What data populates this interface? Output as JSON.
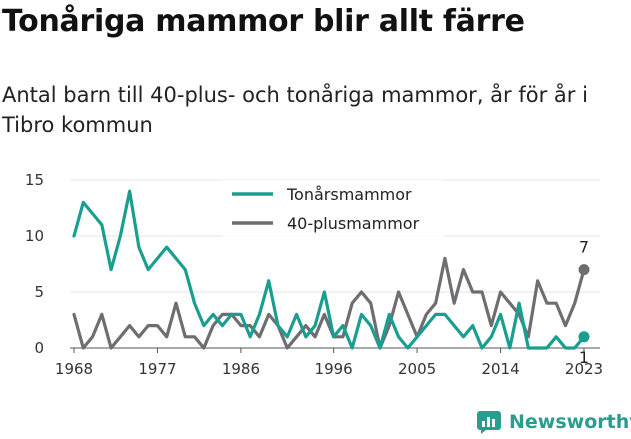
{
  "header": {
    "title": "Tonåriga mammor blir allt färre",
    "subtitle": "Antal barn till 40-plus- och tonåriga mammor, år för år i Tibro kommun"
  },
  "brand": {
    "name": "Newsworthy",
    "icon": "newsworthy-logo-icon",
    "color": "#2a9d8f"
  },
  "chart_data": {
    "type": "line",
    "title": "Tonåriga mammor blir allt färre",
    "subtitle": "Antal barn till 40-plus- och tonåriga mammor, år för år i Tibro kommun",
    "xlabel": "",
    "ylabel": "",
    "xlim": [
      1968,
      2023
    ],
    "ylim": [
      0,
      15
    ],
    "x_ticks": [
      1968,
      1977,
      1986,
      1996,
      2005,
      2014,
      2023
    ],
    "y_ticks": [
      0,
      5,
      10,
      15
    ],
    "grid": true,
    "legend_position": "top-center",
    "x": [
      1968,
      1969,
      1970,
      1971,
      1972,
      1973,
      1974,
      1975,
      1976,
      1977,
      1978,
      1979,
      1980,
      1981,
      1982,
      1983,
      1984,
      1985,
      1986,
      1987,
      1988,
      1989,
      1990,
      1991,
      1992,
      1993,
      1994,
      1995,
      1996,
      1997,
      1998,
      1999,
      2000,
      2001,
      2002,
      2003,
      2004,
      2005,
      2006,
      2007,
      2008,
      2009,
      2010,
      2011,
      2012,
      2013,
      2014,
      2015,
      2016,
      2017,
      2018,
      2019,
      2020,
      2021,
      2022,
      2023
    ],
    "series": [
      {
        "name": "Tonårsmammor",
        "color": "#1a9e8f",
        "values": [
          10,
          13,
          12,
          11,
          7,
          10,
          14,
          9,
          7,
          8,
          9,
          8,
          7,
          4,
          2,
          3,
          2,
          3,
          3,
          1,
          3,
          6,
          2,
          1,
          3,
          1,
          2,
          5,
          1,
          2,
          0,
          3,
          2,
          0,
          3,
          1,
          0,
          1,
          2,
          3,
          3,
          2,
          1,
          2,
          0,
          1,
          3,
          0,
          4,
          0,
          0,
          0,
          1,
          0,
          0,
          1
        ],
        "end_label": "1"
      },
      {
        "name": "40-plusmammor",
        "color": "#6d6d72",
        "values": [
          3,
          0,
          1,
          3,
          0,
          1,
          2,
          1,
          2,
          2,
          1,
          4,
          1,
          1,
          0,
          2,
          3,
          3,
          2,
          2,
          1,
          3,
          2,
          0,
          1,
          2,
          1,
          3,
          1,
          1,
          4,
          5,
          4,
          0,
          2,
          5,
          3,
          1,
          3,
          4,
          8,
          4,
          7,
          5,
          5,
          2,
          5,
          4,
          3,
          1,
          6,
          4,
          4,
          2,
          4,
          7
        ],
        "end_label": "7"
      }
    ]
  }
}
